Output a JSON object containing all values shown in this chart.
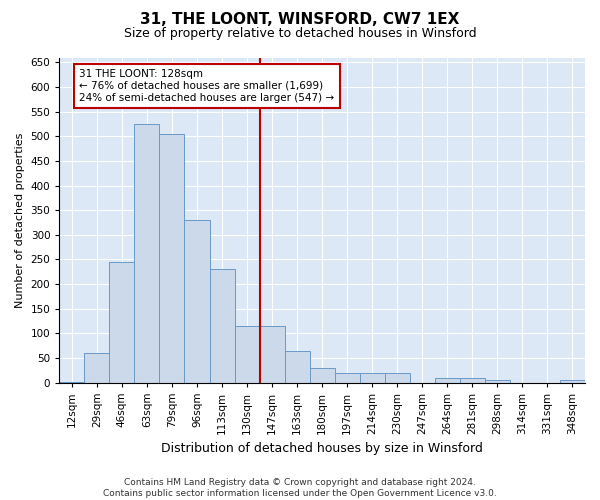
{
  "title": "31, THE LOONT, WINSFORD, CW7 1EX",
  "subtitle": "Size of property relative to detached houses in Winsford",
  "xlabel": "Distribution of detached houses by size in Winsford",
  "ylabel": "Number of detached properties",
  "footer_line1": "Contains HM Land Registry data © Crown copyright and database right 2024.",
  "footer_line2": "Contains public sector information licensed under the Open Government Licence v3.0.",
  "bar_color": "#ccd9ea",
  "bar_edge_color": "#6899c8",
  "bin_labels": [
    "12sqm",
    "29sqm",
    "46sqm",
    "63sqm",
    "79sqm",
    "96sqm",
    "113sqm",
    "130sqm",
    "147sqm",
    "163sqm",
    "180sqm",
    "197sqm",
    "214sqm",
    "230sqm",
    "247sqm",
    "264sqm",
    "281sqm",
    "298sqm",
    "314sqm",
    "331sqm",
    "348sqm"
  ],
  "bar_values": [
    2,
    60,
    245,
    525,
    505,
    330,
    230,
    115,
    115,
    65,
    30,
    20,
    20,
    20,
    0,
    10,
    10,
    5,
    0,
    0,
    5
  ],
  "vline_x_index": 7.5,
  "annotation_text": "31 THE LOONT: 128sqm\n← 76% of detached houses are smaller (1,699)\n24% of semi-detached houses are larger (547) →",
  "ylim": [
    0,
    660
  ],
  "yticks": [
    0,
    50,
    100,
    150,
    200,
    250,
    300,
    350,
    400,
    450,
    500,
    550,
    600,
    650
  ],
  "vline_color": "#bb0000",
  "annotation_box_edge_color": "#bb0000",
  "background_color": "#dce8f5",
  "grid_color": "#ffffff",
  "title_fontsize": 11,
  "subtitle_fontsize": 9,
  "tick_fontsize": 7.5,
  "ylabel_fontsize": 8,
  "xlabel_fontsize": 9,
  "footer_fontsize": 6.5
}
